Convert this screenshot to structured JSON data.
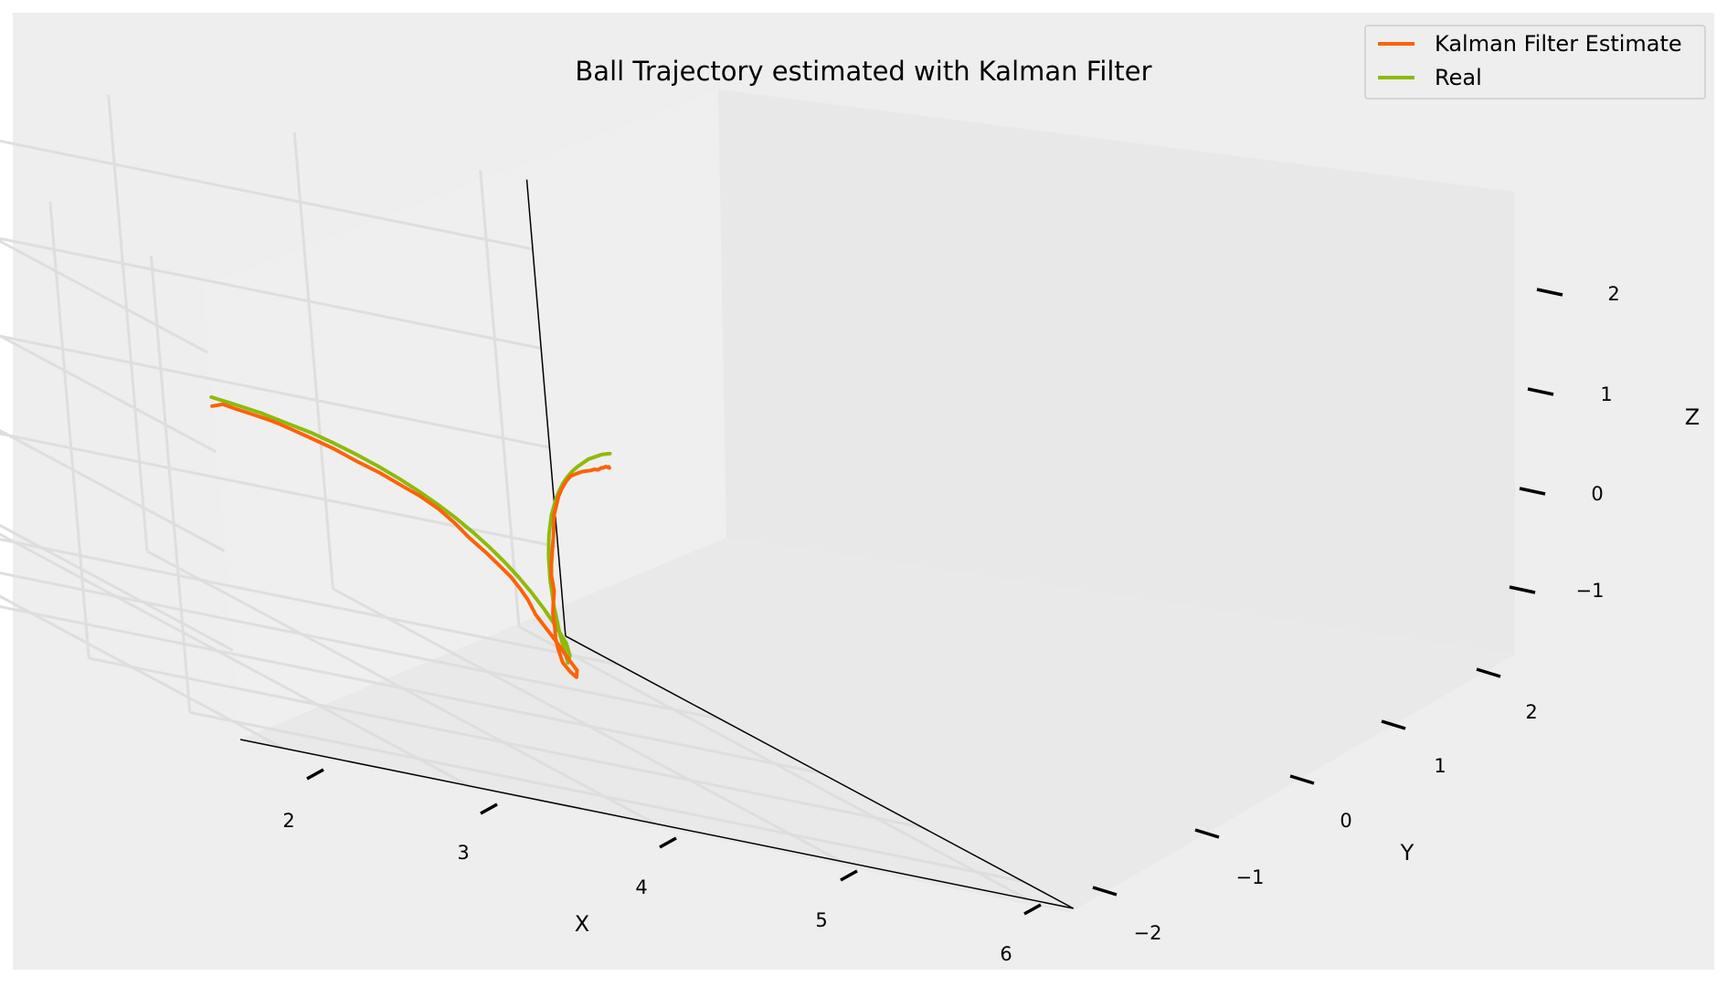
{
  "chart_data": {
    "type": "line",
    "projection": "3d",
    "title": "Ball Trajectory estimated with Kalman Filter",
    "xlabel": "X",
    "ylabel": "Y",
    "zlabel": "Z",
    "x_ticks": [
      "2",
      "3",
      "4",
      "5",
      "6"
    ],
    "y_ticks": [
      "−2",
      "−1",
      "0",
      "1",
      "2"
    ],
    "z_ticks": [
      "−1",
      "0",
      "1",
      "2"
    ],
    "grid": true,
    "legend_position": "top-right",
    "series": [
      {
        "name": "Kalman Filter Estimate",
        "color": "#fc6208",
        "x": [
          1.77,
          1.83,
          1.9,
          2.0,
          2.1,
          2.17,
          2.25,
          2.35,
          2.5,
          2.65,
          2.8,
          2.95,
          3.05,
          3.2,
          3.33,
          3.45,
          3.58,
          3.7,
          3.8,
          3.9,
          4.0,
          4.12,
          4.25,
          4.38,
          4.5,
          4.62,
          4.72,
          4.78,
          4.82,
          4.88,
          4.95,
          5.02,
          5.1,
          5.18,
          5.26,
          5.32,
          5.4,
          5.48,
          5.56,
          5.62,
          5.7,
          5.78,
          5.86,
          5.94,
          6.02,
          6.1,
          6.17,
          6.24,
          6.3,
          6.36,
          6.42,
          6.48,
          6.54,
          6.58,
          6.62,
          6.66,
          6.7,
          6.74
        ],
        "y": [
          2.5,
          2.5,
          2.5,
          2.47,
          2.45,
          2.43,
          2.4,
          2.38,
          2.33,
          2.28,
          2.23,
          2.18,
          2.15,
          2.05,
          1.95,
          1.86,
          1.78,
          1.68,
          1.6,
          1.5,
          1.38,
          1.22,
          1.07,
          0.93,
          0.79,
          0.65,
          0.45,
          0.28,
          0.13,
          -0.02,
          -0.17,
          -0.3,
          -0.46,
          -0.6,
          -0.73,
          -0.86,
          -1.0,
          -1.13,
          -1.26,
          -1.36,
          -1.5,
          -1.62,
          -1.74,
          -1.85,
          -1.95,
          -2.05,
          -2.12,
          -2.19,
          -2.26,
          -2.33,
          -2.41,
          -2.48,
          -2.56,
          -2.62,
          -2.68,
          -2.74,
          -2.78,
          -2.86
        ],
        "z": [
          1.46,
          1.5,
          1.48,
          1.45,
          1.42,
          1.39,
          1.35,
          1.3,
          1.22,
          1.12,
          1.03,
          0.92,
          0.85,
          0.72,
          0.58,
          0.43,
          0.28,
          0.14,
          0.02,
          -0.12,
          -0.26,
          -0.45,
          -0.62,
          -0.8,
          -0.97,
          -1.13,
          -1.27,
          -1.29,
          -1.26,
          -1.18,
          -1.13,
          -1.08,
          -0.98,
          -0.93,
          -0.84,
          -0.73,
          -0.66,
          -0.56,
          -0.47,
          -0.39,
          -0.33,
          -0.27,
          -0.21,
          -0.16,
          -0.11,
          -0.08,
          -0.07,
          -0.06,
          -0.07,
          -0.08,
          -0.09,
          -0.11,
          -0.11,
          -0.13,
          -0.14,
          -0.15,
          -0.17,
          -0.19
        ]
      },
      {
        "name": "Real",
        "color": "#8eba0a",
        "x": [
          1.77,
          1.9,
          2.05,
          2.2,
          2.35,
          2.5,
          2.65,
          2.8,
          2.95,
          3.1,
          3.25,
          3.4,
          3.55,
          3.7,
          3.85,
          4.0,
          4.15,
          4.3,
          4.45,
          4.6,
          4.72,
          4.8,
          4.88,
          4.96,
          5.04,
          5.12,
          5.2,
          5.28,
          5.36,
          5.44,
          5.52,
          5.6,
          5.68,
          5.76,
          5.84,
          5.92,
          6.0,
          6.08,
          6.16,
          6.24,
          6.32,
          6.4,
          6.48,
          6.56,
          6.64,
          6.72
        ],
        "y": [
          2.5,
          2.49,
          2.47,
          2.44,
          2.4,
          2.35,
          2.29,
          2.22,
          2.14,
          2.05,
          1.95,
          1.84,
          1.72,
          1.59,
          1.45,
          1.3,
          1.14,
          0.97,
          0.79,
          0.6,
          0.4,
          0.22,
          0.04,
          -0.14,
          -0.31,
          -0.48,
          -0.64,
          -0.8,
          -0.95,
          -1.1,
          -1.24,
          -1.38,
          -1.51,
          -1.64,
          -1.76,
          -1.88,
          -1.99,
          -2.1,
          -2.2,
          -2.3,
          -2.39,
          -2.48,
          -2.57,
          -2.65,
          -2.73,
          -2.8
        ],
        "z": [
          1.55,
          1.52,
          1.48,
          1.42,
          1.36,
          1.28,
          1.19,
          1.09,
          0.98,
          0.86,
          0.73,
          0.59,
          0.44,
          0.28,
          0.11,
          -0.07,
          -0.26,
          -0.46,
          -0.67,
          -0.89,
          -1.08,
          -1.22,
          -1.14,
          -1.07,
          -0.99,
          -0.92,
          -0.84,
          -0.77,
          -0.7,
          -0.63,
          -0.56,
          -0.5,
          -0.44,
          -0.38,
          -0.33,
          -0.28,
          -0.23,
          -0.19,
          -0.15,
          -0.12,
          -0.09,
          -0.07,
          -0.05,
          -0.04,
          -0.03,
          -0.03
        ]
      }
    ]
  }
}
